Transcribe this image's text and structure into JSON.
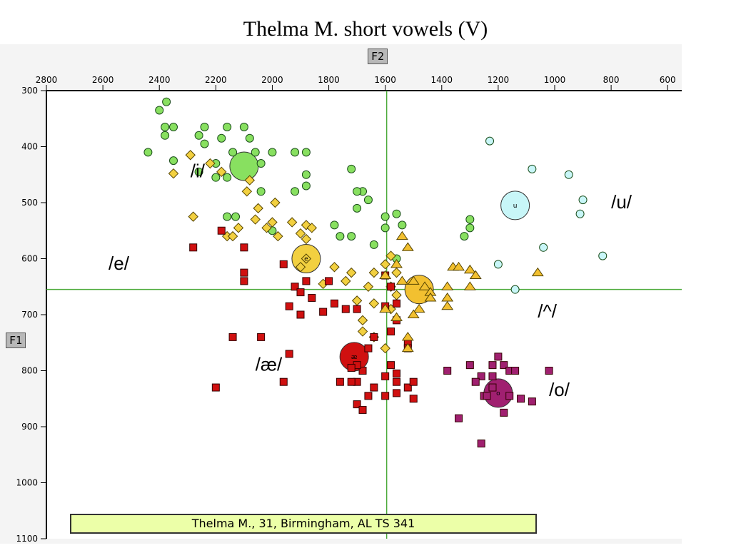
{
  "chart_data": {
    "type": "scatter",
    "title": "Thelma M. short vowels (V)",
    "xlabel": "F2",
    "ylabel": "F1",
    "xlim": [
      2800,
      550
    ],
    "ylim": [
      300,
      1100
    ],
    "x_ticks": [
      2800,
      2600,
      2400,
      2200,
      2000,
      1800,
      1600,
      1400,
      1200,
      1000,
      800,
      600
    ],
    "y_ticks": [
      300,
      400,
      500,
      600,
      700,
      800,
      900,
      1000,
      1100
    ],
    "crosshair": {
      "f2": 1595,
      "f1": 655
    },
    "caption": "Thelma M., 31, Birmingham, AL  TS 341",
    "vowel_labels": [
      {
        "text": "/i/",
        "f2": 2290,
        "f1": 455
      },
      {
        "text": "/u/",
        "f2": 800,
        "f1": 510
      },
      {
        "text": "/e/",
        "f2": 2580,
        "f1": 620
      },
      {
        "text": "/^/",
        "f2": 1060,
        "f1": 705
      },
      {
        "text": "/æ/",
        "f2": 2060,
        "f1": 800
      },
      {
        "text": "/o/",
        "f2": 1020,
        "f1": 845
      }
    ],
    "series": [
      {
        "name": "i",
        "marker": "circle",
        "color": "#88e060",
        "mean": {
          "f2": 2100,
          "f1": 435,
          "label": ""
        },
        "points": [
          [
            2375,
            320
          ],
          [
            2400,
            335
          ],
          [
            2380,
            365
          ],
          [
            2350,
            365
          ],
          [
            2380,
            380
          ],
          [
            2440,
            410
          ],
          [
            2350,
            425
          ],
          [
            2240,
            365
          ],
          [
            2260,
            380
          ],
          [
            2240,
            395
          ],
          [
            2180,
            385
          ],
          [
            2160,
            365
          ],
          [
            2100,
            365
          ],
          [
            2080,
            385
          ],
          [
            2000,
            410
          ],
          [
            2060,
            410
          ],
          [
            2040,
            430
          ],
          [
            2140,
            410
          ],
          [
            2200,
            430
          ],
          [
            2260,
            445
          ],
          [
            2200,
            455
          ],
          [
            2160,
            455
          ],
          [
            1920,
            410
          ],
          [
            1880,
            410
          ],
          [
            1720,
            440
          ],
          [
            1880,
            450
          ],
          [
            1880,
            470
          ],
          [
            1920,
            480
          ],
          [
            2040,
            480
          ],
          [
            1680,
            480
          ],
          [
            1700,
            480
          ],
          [
            1660,
            495
          ],
          [
            1700,
            510
          ],
          [
            1780,
            540
          ],
          [
            1760,
            560
          ],
          [
            1720,
            560
          ],
          [
            1640,
            575
          ],
          [
            1600,
            545
          ],
          [
            1600,
            525
          ],
          [
            1560,
            520
          ],
          [
            1300,
            530
          ],
          [
            1300,
            545
          ],
          [
            1320,
            560
          ],
          [
            2160,
            525
          ],
          [
            2130,
            525
          ],
          [
            2000,
            550
          ],
          [
            1540,
            540
          ],
          [
            1560,
            600
          ]
        ]
      },
      {
        "name": "e",
        "marker": "diamond",
        "color": "#f2d040",
        "mean": {
          "f2": 1880,
          "f1": 600,
          "label": "e"
        },
        "points": [
          [
            2290,
            415
          ],
          [
            2220,
            430
          ],
          [
            2180,
            445
          ],
          [
            2350,
            448
          ],
          [
            2080,
            460
          ],
          [
            2090,
            480
          ],
          [
            2050,
            510
          ],
          [
            1990,
            500
          ],
          [
            2060,
            530
          ],
          [
            2020,
            545
          ],
          [
            1930,
            535
          ],
          [
            1880,
            540
          ],
          [
            1860,
            545
          ],
          [
            2160,
            560
          ],
          [
            2140,
            560
          ],
          [
            1900,
            555
          ],
          [
            1880,
            565
          ],
          [
            1880,
            600
          ],
          [
            1900,
            615
          ],
          [
            1780,
            615
          ],
          [
            1740,
            640
          ],
          [
            1820,
            645
          ],
          [
            1720,
            625
          ],
          [
            1640,
            625
          ],
          [
            1660,
            650
          ],
          [
            1580,
            595
          ],
          [
            1600,
            610
          ],
          [
            1560,
            625
          ],
          [
            1580,
            650
          ],
          [
            1560,
            665
          ],
          [
            1700,
            675
          ],
          [
            1640,
            680
          ],
          [
            1580,
            690
          ],
          [
            1680,
            710
          ],
          [
            1680,
            730
          ],
          [
            1640,
            740
          ],
          [
            1600,
            760
          ],
          [
            2280,
            525
          ],
          [
            2120,
            545
          ],
          [
            2000,
            535
          ],
          [
            1980,
            560
          ]
        ]
      },
      {
        "name": "ae",
        "marker": "square",
        "color": "#d01010",
        "mean": {
          "f2": 1710,
          "f1": 775,
          "label": "æ"
        },
        "points": [
          [
            2280,
            580
          ],
          [
            2180,
            550
          ],
          [
            2100,
            580
          ],
          [
            2100,
            625
          ],
          [
            2100,
            640
          ],
          [
            1960,
            610
          ],
          [
            1880,
            640
          ],
          [
            1920,
            650
          ],
          [
            1800,
            640
          ],
          [
            1900,
            660
          ],
          [
            1860,
            670
          ],
          [
            1940,
            685
          ],
          [
            1820,
            695
          ],
          [
            1900,
            700
          ],
          [
            1780,
            680
          ],
          [
            1740,
            690
          ],
          [
            1700,
            690
          ],
          [
            1600,
            630
          ],
          [
            1580,
            650
          ],
          [
            1560,
            680
          ],
          [
            1600,
            685
          ],
          [
            1560,
            710
          ],
          [
            1580,
            730
          ],
          [
            1520,
            750
          ],
          [
            1640,
            740
          ],
          [
            1660,
            760
          ],
          [
            1520,
            760
          ],
          [
            1580,
            790
          ],
          [
            1600,
            810
          ],
          [
            1680,
            800
          ],
          [
            1700,
            790
          ],
          [
            1720,
            795
          ],
          [
            1640,
            830
          ],
          [
            1700,
            820
          ],
          [
            1660,
            845
          ],
          [
            1720,
            820
          ],
          [
            1760,
            820
          ],
          [
            1700,
            860
          ],
          [
            1680,
            870
          ],
          [
            1600,
            845
          ],
          [
            1560,
            840
          ],
          [
            1560,
            820
          ],
          [
            1560,
            805
          ],
          [
            1520,
            830
          ],
          [
            1500,
            820
          ],
          [
            1500,
            850
          ],
          [
            1940,
            770
          ],
          [
            1960,
            820
          ],
          [
            2040,
            740
          ],
          [
            2140,
            740
          ],
          [
            2200,
            830
          ]
        ]
      },
      {
        "name": "^",
        "marker": "triangle",
        "color": "#f2c030",
        "mean": {
          "f2": 1480,
          "f1": 655,
          "label": ""
        },
        "points": [
          [
            1540,
            560
          ],
          [
            1520,
            580
          ],
          [
            1560,
            610
          ],
          [
            1600,
            630
          ],
          [
            1540,
            640
          ],
          [
            1500,
            640
          ],
          [
            1460,
            650
          ],
          [
            1440,
            660
          ],
          [
            1360,
            615
          ],
          [
            1340,
            615
          ],
          [
            1300,
            620
          ],
          [
            1280,
            630
          ],
          [
            1380,
            650
          ],
          [
            1380,
            670
          ],
          [
            1380,
            685
          ],
          [
            1300,
            650
          ],
          [
            1440,
            670
          ],
          [
            1480,
            690
          ],
          [
            1500,
            700
          ],
          [
            1560,
            705
          ],
          [
            1600,
            690
          ],
          [
            1520,
            740
          ],
          [
            1520,
            760
          ],
          [
            1060,
            625
          ]
        ]
      },
      {
        "name": "o",
        "marker": "square",
        "color": "#a02070",
        "mean": {
          "f2": 1200,
          "f1": 840,
          "label": "o"
        },
        "points": [
          [
            1300,
            790
          ],
          [
            1260,
            810
          ],
          [
            1220,
            810
          ],
          [
            1220,
            790
          ],
          [
            1200,
            775
          ],
          [
            1180,
            790
          ],
          [
            1160,
            800
          ],
          [
            1140,
            800
          ],
          [
            1280,
            820
          ],
          [
            1220,
            830
          ],
          [
            1250,
            845
          ],
          [
            1120,
            850
          ],
          [
            1080,
            855
          ],
          [
            1020,
            800
          ],
          [
            1240,
            845
          ],
          [
            1180,
            875
          ],
          [
            1340,
            885
          ],
          [
            1260,
            930
          ],
          [
            1380,
            800
          ],
          [
            1160,
            845
          ]
        ]
      },
      {
        "name": "u",
        "marker": "circle",
        "color": "#c8f6f8",
        "mean": {
          "f2": 1140,
          "f1": 505,
          "label": "u"
        },
        "points": [
          [
            1230,
            390
          ],
          [
            1080,
            440
          ],
          [
            950,
            450
          ],
          [
            900,
            495
          ],
          [
            910,
            520
          ],
          [
            1040,
            580
          ],
          [
            1200,
            610
          ],
          [
            830,
            595
          ],
          [
            1140,
            655
          ]
        ]
      }
    ]
  }
}
